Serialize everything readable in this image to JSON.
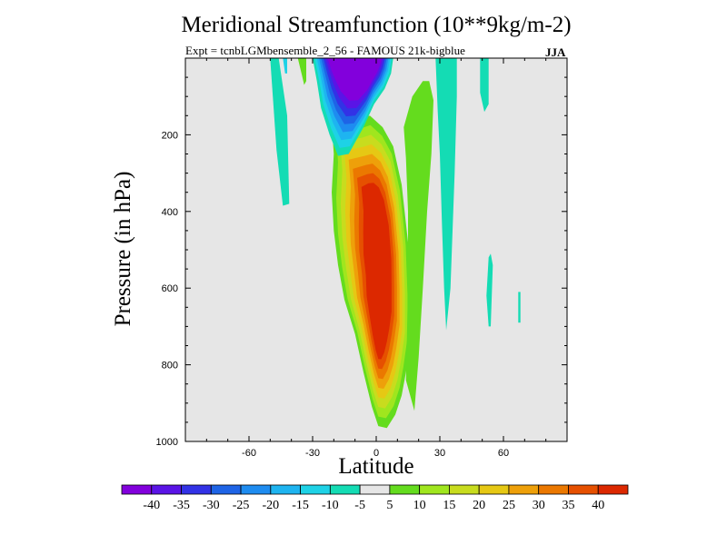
{
  "chart_data": {
    "type": "contour",
    "title": "Meridional Streamfunction (10**9kg/m-2)",
    "subtitle": "Expt = tcnbLGMbensemble_2_56 - FAMOUS 21k-bigblue",
    "season": "JJA",
    "xlabel": "Latitude",
    "ylabel": "Pressure (in hPa)",
    "xlim": [
      -90,
      90
    ],
    "ylim": [
      1000,
      0
    ],
    "xticks": [
      -60,
      -30,
      0,
      30,
      60
    ],
    "xtick_labels": [
      "-60",
      "-30",
      "0",
      "30",
      "60"
    ],
    "yticks": [
      200,
      400,
      600,
      800,
      1000
    ],
    "ytick_labels": [
      "200",
      "400",
      "600",
      "800",
      "1000"
    ],
    "background_color": "#e6e6e6",
    "colorbar": {
      "labels": [
        "-40",
        "-35",
        "-30",
        "-25",
        "-20",
        "-15",
        "-10",
        "-5",
        "5",
        "10",
        "15",
        "20",
        "25",
        "30",
        "35",
        "40"
      ],
      "colors": [
        "#8200dc",
        "#5a14e6",
        "#3232e6",
        "#1e64e6",
        "#1e8cf0",
        "#1eb4f0",
        "#1ed2e6",
        "#14dcb4",
        "#e6e6e6",
        "#64dc1e",
        "#a0e61e",
        "#c8dc1e",
        "#e6c814",
        "#eea00a",
        "#eb7800",
        "#e65000",
        "#dc2800"
      ]
    },
    "fields": [
      {
        "name": "southern-hemisphere-cell",
        "sign": "negative",
        "center_lat": -12,
        "center_pressure": 50,
        "peak_value": -40
      },
      {
        "name": "hadley-direct-cell",
        "sign": "positive",
        "center_lat": 3,
        "center_pressure": 550,
        "peak_value": 40
      },
      {
        "name": "northern-subtropical-band",
        "sign": "negative",
        "center_lat": 36,
        "center_pressure": 150,
        "peak_value": -10
      }
    ]
  }
}
